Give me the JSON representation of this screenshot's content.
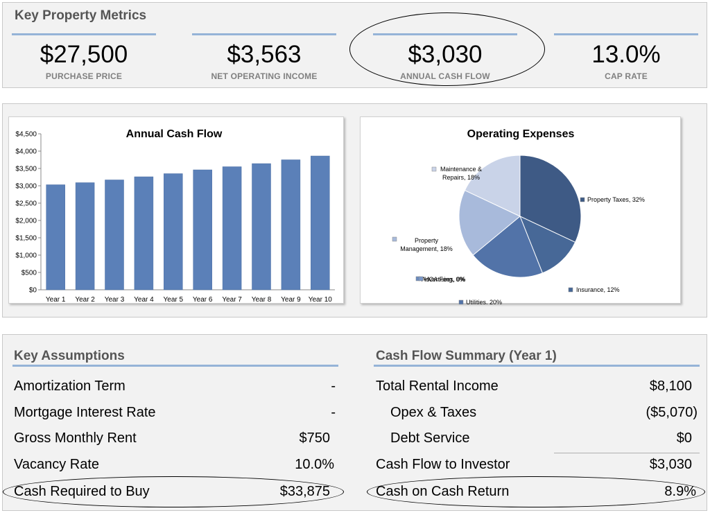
{
  "metrics": {
    "title": "Key Property Metrics",
    "items": [
      {
        "value": "$27,500",
        "label": "PURCHASE PRICE"
      },
      {
        "value": "$3,563",
        "label": "NET OPERATING INCOME"
      },
      {
        "value": "$3,030",
        "label": "ANNUAL CASH FLOW"
      },
      {
        "value": "13.0%",
        "label": "CAP RATE"
      }
    ]
  },
  "chart_data": [
    {
      "type": "bar",
      "title": "Annual Cash Flow",
      "categories": [
        "Year 1",
        "Year 2",
        "Year 3",
        "Year 4",
        "Year 5",
        "Year 6",
        "Year 7",
        "Year 8",
        "Year 9",
        "Year 10"
      ],
      "values": [
        3030,
        3090,
        3170,
        3260,
        3350,
        3460,
        3550,
        3640,
        3750,
        3860
      ],
      "ylim": [
        0,
        4500
      ],
      "yticks": [
        "$0",
        "$500",
        "$1,000",
        "$1,500",
        "$2,000",
        "$2,500",
        "$3,000",
        "$3,500",
        "$4,000",
        "$4,500"
      ],
      "xlabel": "",
      "ylabel": "",
      "color": "#5b80b8",
      "grid": false
    },
    {
      "type": "pie",
      "title": "Operating Expenses",
      "slices": [
        {
          "label": "Property Taxes, 32%",
          "value": 32,
          "color": "#3e5a85"
        },
        {
          "label": "Insurance, 12%",
          "value": 12,
          "color": "#476897"
        },
        {
          "label": "Utilities, 20%",
          "value": 20,
          "color": "#5273a8"
        },
        {
          "label": "Advertising, 0%",
          "value": 0,
          "color": "#6a8bbf"
        },
        {
          "label": "HOA Fees, 0%",
          "value": 0,
          "color": "#7a98c9"
        },
        {
          "label": "Property Management, 18%",
          "value": 18,
          "color": "#a8badb"
        },
        {
          "label": "Maintenance & Repairs, 18%",
          "value": 18,
          "color": "#c9d3e8"
        }
      ]
    }
  ],
  "assumptions": {
    "title": "Key Assumptions",
    "rows": [
      {
        "label": "Amortization Term",
        "value": "-"
      },
      {
        "label": "Mortgage Interest Rate",
        "value": "-"
      },
      {
        "label": "Gross Monthly Rent",
        "value": "$750"
      },
      {
        "label": "Vacancy Rate",
        "value": "10.0%"
      },
      {
        "label": "Cash Required to Buy",
        "value": "$33,875"
      }
    ]
  },
  "summary": {
    "title": "Cash Flow Summary (Year 1)",
    "rows": [
      {
        "label": "Total Rental Income",
        "value": "$8,100"
      },
      {
        "label": "Opex & Taxes",
        "value": "($5,070)"
      },
      {
        "label": "Debt Service",
        "value": "$0"
      },
      {
        "label": "Cash Flow to Investor",
        "value": "$3,030"
      },
      {
        "label": "Cash on Cash Return",
        "value": "8.9%"
      }
    ]
  }
}
